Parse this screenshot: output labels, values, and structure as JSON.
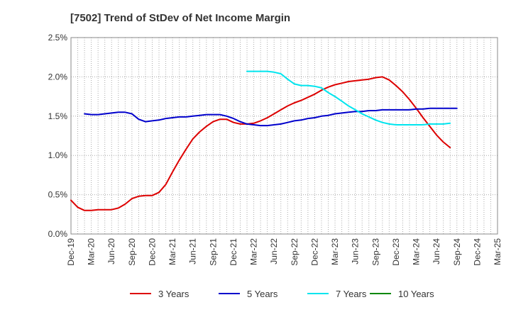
{
  "colors": {
    "3y": "#dd0000",
    "5y": "#0000cc",
    "7y": "#00e5ee",
    "10y": "#008800"
  },
  "chart_data": {
    "type": "line",
    "title": "[7502]  Trend of StDev of Net Income Margin",
    "xlabel": "",
    "ylabel": "",
    "ylim": [
      0,
      2.5
    ],
    "y_ticks": [
      "0.0%",
      "0.5%",
      "1.0%",
      "1.5%",
      "2.0%",
      "2.5%"
    ],
    "x_ticks": [
      "Dec-19",
      "Mar-20",
      "Jun-20",
      "Sep-20",
      "Dec-20",
      "Mar-21",
      "Jun-21",
      "Sep-21",
      "Dec-21",
      "Mar-22",
      "Jun-22",
      "Sep-22",
      "Dec-22",
      "Mar-23",
      "Jun-23",
      "Sep-23",
      "Dec-23",
      "Mar-24",
      "Jun-24",
      "Sep-24",
      "Dec-24",
      "Mar-25"
    ],
    "grid": true,
    "legend_position": "bottom",
    "series": [
      {
        "name": "3 Years",
        "color_key": "3y",
        "start": 0,
        "values": [
          0.43,
          0.34,
          0.3,
          0.3,
          0.31,
          0.31,
          0.31,
          0.33,
          0.38,
          0.45,
          0.48,
          0.49,
          0.49,
          0.53,
          0.63,
          0.79,
          0.94,
          1.08,
          1.21,
          1.3,
          1.37,
          1.43,
          1.46,
          1.46,
          1.42,
          1.4,
          1.4,
          1.41,
          1.44,
          1.48,
          1.53,
          1.58,
          1.63,
          1.67,
          1.7,
          1.74,
          1.78,
          1.83,
          1.87,
          1.9,
          1.92,
          1.94,
          1.95,
          1.96,
          1.97,
          1.99,
          2.0,
          1.96,
          1.89,
          1.81,
          1.71,
          1.6,
          1.48,
          1.37,
          1.26,
          1.17,
          1.1
        ]
      },
      {
        "name": "5 Years",
        "color_key": "5y",
        "start": 2,
        "values": [
          1.53,
          1.52,
          1.52,
          1.53,
          1.54,
          1.55,
          1.55,
          1.53,
          1.46,
          1.43,
          1.44,
          1.45,
          1.47,
          1.48,
          1.49,
          1.49,
          1.5,
          1.51,
          1.52,
          1.52,
          1.52,
          1.5,
          1.47,
          1.43,
          1.4,
          1.39,
          1.38,
          1.38,
          1.39,
          1.4,
          1.42,
          1.44,
          1.45,
          1.47,
          1.48,
          1.5,
          1.51,
          1.53,
          1.54,
          1.55,
          1.56,
          1.56,
          1.57,
          1.57,
          1.58,
          1.58,
          1.58,
          1.58,
          1.58,
          1.59,
          1.59,
          1.6,
          1.6,
          1.6,
          1.6,
          1.6
        ]
      },
      {
        "name": "7 Years",
        "color_key": "7y",
        "start": 26,
        "values": [
          2.07,
          2.07,
          2.07,
          2.07,
          2.06,
          2.04,
          1.97,
          1.91,
          1.89,
          1.89,
          1.88,
          1.86,
          1.8,
          1.75,
          1.69,
          1.63,
          1.58,
          1.53,
          1.49,
          1.45,
          1.42,
          1.4,
          1.39,
          1.39,
          1.39,
          1.39,
          1.39,
          1.4,
          1.4,
          1.4,
          1.41
        ]
      },
      {
        "name": "10 Years",
        "color_key": "10y",
        "start": 0,
        "values": []
      }
    ]
  }
}
